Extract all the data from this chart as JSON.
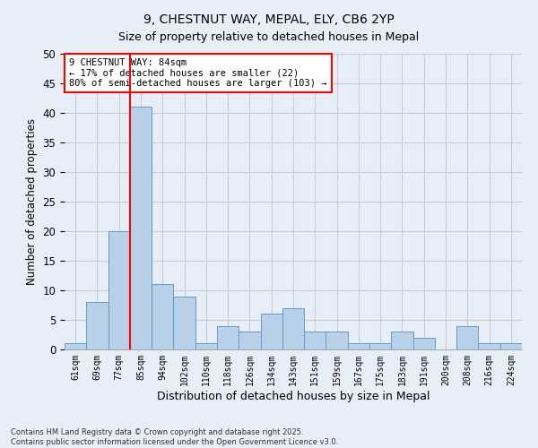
{
  "title_line1": "9, CHESTNUT WAY, MEPAL, ELY, CB6 2YP",
  "title_line2": "Size of property relative to detached houses in Mepal",
  "xlabel": "Distribution of detached houses by size in Mepal",
  "ylabel": "Number of detached properties",
  "bins": [
    "61sqm",
    "69sqm",
    "77sqm",
    "85sqm",
    "94sqm",
    "102sqm",
    "110sqm",
    "118sqm",
    "126sqm",
    "134sqm",
    "143sqm",
    "151sqm",
    "159sqm",
    "167sqm",
    "175sqm",
    "183sqm",
    "191sqm",
    "200sqm",
    "208sqm",
    "216sqm",
    "224sqm"
  ],
  "values": [
    1,
    8,
    20,
    41,
    11,
    9,
    1,
    4,
    3,
    6,
    7,
    3,
    3,
    1,
    1,
    3,
    2,
    0,
    4,
    1,
    1
  ],
  "bar_color": "#b8d0e8",
  "bar_edge_color": "#6699cc",
  "grid_color": "#cccccc",
  "bg_color": "#e8eef8",
  "vline_color": "red",
  "annotation_text": "9 CHESTNUT WAY: 84sqm\n← 17% of detached houses are smaller (22)\n80% of semi-detached houses are larger (103) →",
  "annotation_box_color": "white",
  "annotation_box_edge_color": "red",
  "ylim": [
    0,
    50
  ],
  "yticks": [
    0,
    5,
    10,
    15,
    20,
    25,
    30,
    35,
    40,
    45,
    50
  ],
  "footer": "Contains HM Land Registry data © Crown copyright and database right 2025.\nContains public sector information licensed under the Open Government Licence v3.0."
}
